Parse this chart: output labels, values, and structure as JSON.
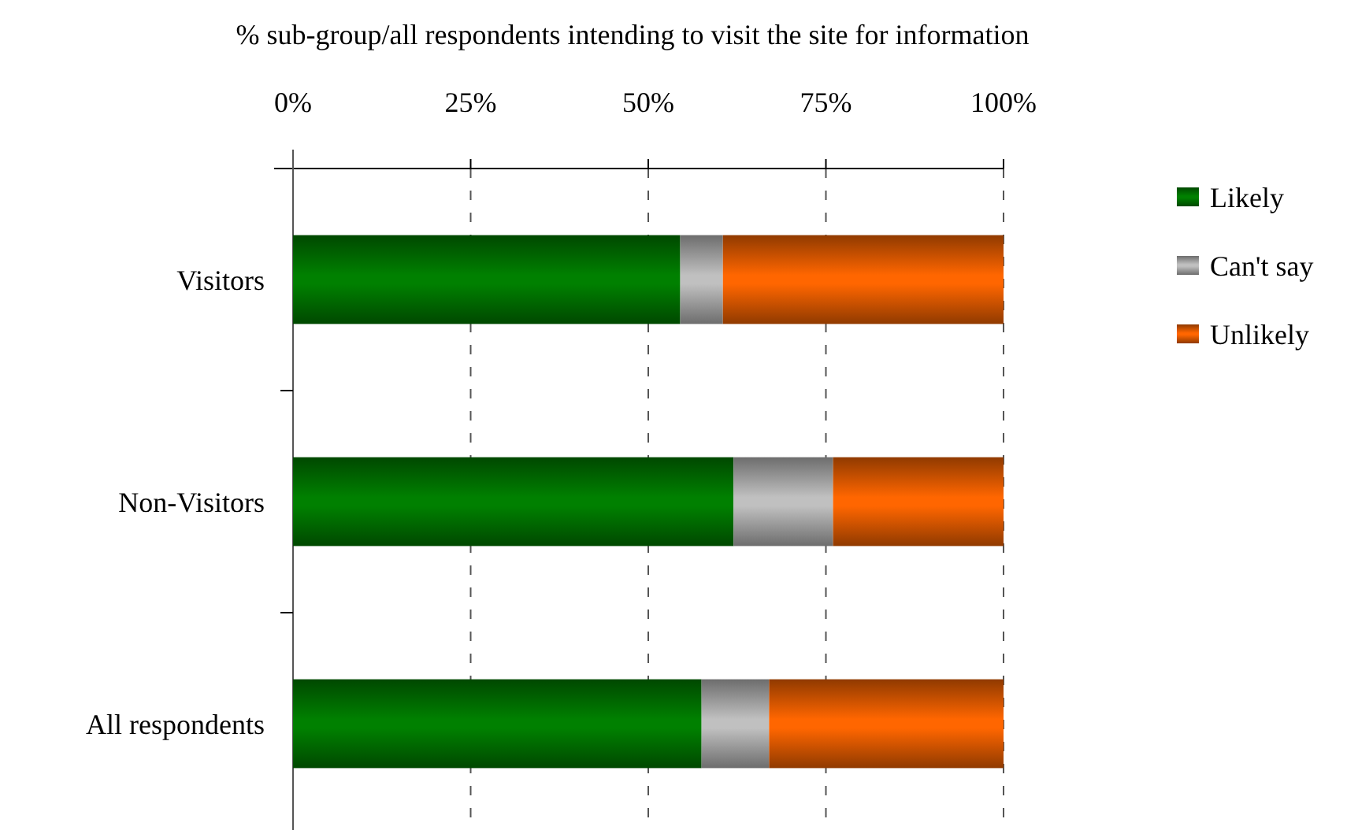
{
  "chart_data": {
    "type": "bar",
    "orientation": "horizontal",
    "stacked": true,
    "xlabel": "% sub-group/all respondents intending to visit the site for information",
    "categories": [
      "Visitors",
      "Non-Visitors",
      "All respondents"
    ],
    "series": [
      {
        "name": "Likely",
        "color": "#008000",
        "values": [
          54.5,
          62,
          57.5
        ]
      },
      {
        "name": "Can't say",
        "color": "#c0c0c0",
        "values": [
          6,
          14,
          9.5
        ]
      },
      {
        "name": "Unlikely",
        "color": "#ff6600",
        "values": [
          39.5,
          24,
          33
        ]
      }
    ],
    "xlim": [
      0,
      100
    ],
    "xticks": [
      {
        "value": 0,
        "label": "0%"
      },
      {
        "value": 25,
        "label": "25%"
      },
      {
        "value": 50,
        "label": "50%"
      },
      {
        "value": 75,
        "label": "75%"
      },
      {
        "value": 100,
        "label": "100%"
      }
    ],
    "grid": "x",
    "legend": "right"
  }
}
